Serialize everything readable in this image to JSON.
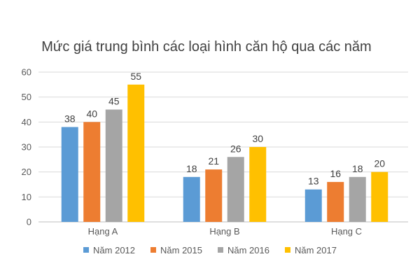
{
  "chart_data": {
    "type": "bar",
    "title": "Mức giá trung bình các loại hình căn hộ qua các năm",
    "categories": [
      "Hạng A",
      "Hạng B",
      "Hạng C"
    ],
    "series": [
      {
        "name": "Năm 2012",
        "color": "#5b9bd5",
        "values": [
          38,
          18,
          13
        ]
      },
      {
        "name": "Năm 2015",
        "color": "#ed7d31",
        "values": [
          40,
          21,
          16
        ]
      },
      {
        "name": "Năm 2016",
        "color": "#a5a5a5",
        "values": [
          45,
          26,
          18
        ]
      },
      {
        "name": "Năm 2017",
        "color": "#ffc000",
        "values": [
          55,
          30,
          20
        ]
      }
    ],
    "ylim": [
      0,
      60
    ],
    "yticks": [
      0,
      10,
      20,
      30,
      40,
      50,
      60
    ],
    "grid": true,
    "legend_position": "bottom",
    "data_labels": true
  }
}
